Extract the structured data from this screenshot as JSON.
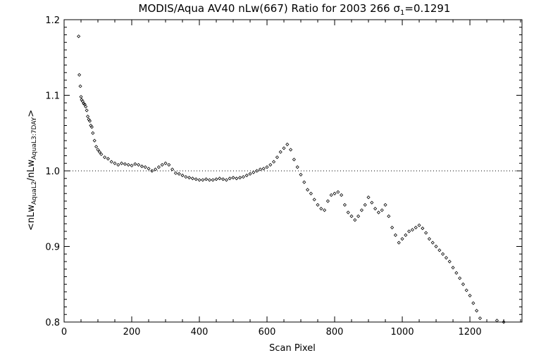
{
  "chart_data": {
    "type": "scatter",
    "title": "MODIS/Aqua AV40 nLw(667) Ratio for 2003 266 σ",
    "title_sigma_sub": "1",
    "title_sigma_value": "=0.1291",
    "xlabel": "Scan Pixel",
    "ylabel": {
      "open": "<nLw",
      "sub1": "AquaL2",
      "mid": "/nLw",
      "sub2": "AquaL3:7DAY",
      "close": ">"
    },
    "xlim": [
      0,
      1354
    ],
    "ylim": [
      0.8,
      1.2
    ],
    "xticks": [
      0,
      200,
      400,
      600,
      800,
      1000,
      1200
    ],
    "yticks": [
      0.8,
      0.9,
      1.0,
      1.1,
      1.2
    ],
    "ytick_labels": [
      "0.8",
      "0.9",
      "1.0",
      "1.1",
      "1.2"
    ],
    "reference_line": 1.0,
    "marker": "diamond",
    "marker_color": "#000000",
    "series": [
      {
        "x": [
          43,
          45,
          48,
          50,
          52,
          55,
          58,
          61,
          64,
          67,
          70,
          73,
          76,
          79,
          82,
          85,
          90,
          95,
          100,
          105,
          110,
          120,
          130,
          140,
          150,
          160,
          170,
          180,
          190,
          200,
          210,
          220,
          230,
          240,
          250,
          260,
          270,
          280,
          290,
          300,
          310,
          320,
          330,
          340,
          350,
          360,
          370,
          380,
          390,
          400,
          410,
          420,
          430,
          440,
          450,
          460,
          470,
          480,
          490,
          500,
          510,
          520,
          530,
          540,
          550,
          560,
          570,
          580,
          590,
          600,
          610,
          620,
          630,
          640,
          650,
          660,
          670,
          680,
          690,
          700,
          710,
          720,
          730,
          740,
          750,
          760,
          770,
          780,
          790,
          800,
          810,
          820,
          830,
          840,
          850,
          860,
          870,
          880,
          890,
          900,
          910,
          920,
          930,
          940,
          950,
          960,
          970,
          980,
          990,
          1000,
          1010,
          1020,
          1030,
          1040,
          1050,
          1060,
          1070,
          1080,
          1090,
          1100,
          1110,
          1120,
          1130,
          1140,
          1150,
          1160,
          1170,
          1180,
          1190,
          1200,
          1210,
          1220,
          1230,
          1280,
          1300
        ],
        "y": [
          1.178,
          1.127,
          1.112,
          1.098,
          1.094,
          1.092,
          1.089,
          1.088,
          1.085,
          1.08,
          1.072,
          1.068,
          1.066,
          1.06,
          1.058,
          1.05,
          1.04,
          1.032,
          1.028,
          1.025,
          1.022,
          1.018,
          1.016,
          1.012,
          1.01,
          1.008,
          1.01,
          1.009,
          1.008,
          1.007,
          1.009,
          1.008,
          1.006,
          1.005,
          1.003,
          1.0,
          1.002,
          1.005,
          1.008,
          1.01,
          1.008,
          1.002,
          0.997,
          0.996,
          0.994,
          0.992,
          0.991,
          0.99,
          0.989,
          0.988,
          0.988,
          0.989,
          0.988,
          0.988,
          0.989,
          0.99,
          0.989,
          0.988,
          0.99,
          0.991,
          0.99,
          0.991,
          0.992,
          0.994,
          0.996,
          0.998,
          1.0,
          1.002,
          1.003,
          1.005,
          1.008,
          1.012,
          1.018,
          1.025,
          1.03,
          1.035,
          1.028,
          1.015,
          1.005,
          0.995,
          0.985,
          0.975,
          0.97,
          0.962,
          0.955,
          0.95,
          0.948,
          0.96,
          0.968,
          0.97,
          0.972,
          0.968,
          0.955,
          0.945,
          0.94,
          0.935,
          0.94,
          0.948,
          0.955,
          0.965,
          0.958,
          0.95,
          0.945,
          0.948,
          0.955,
          0.94,
          0.925,
          0.915,
          0.905,
          0.91,
          0.915,
          0.92,
          0.922,
          0.925,
          0.928,
          0.924,
          0.918,
          0.91,
          0.905,
          0.9,
          0.895,
          0.89,
          0.885,
          0.88,
          0.872,
          0.865,
          0.858,
          0.85,
          0.842,
          0.835,
          0.825,
          0.815,
          0.805,
          0.802,
          0.8
        ]
      }
    ]
  }
}
